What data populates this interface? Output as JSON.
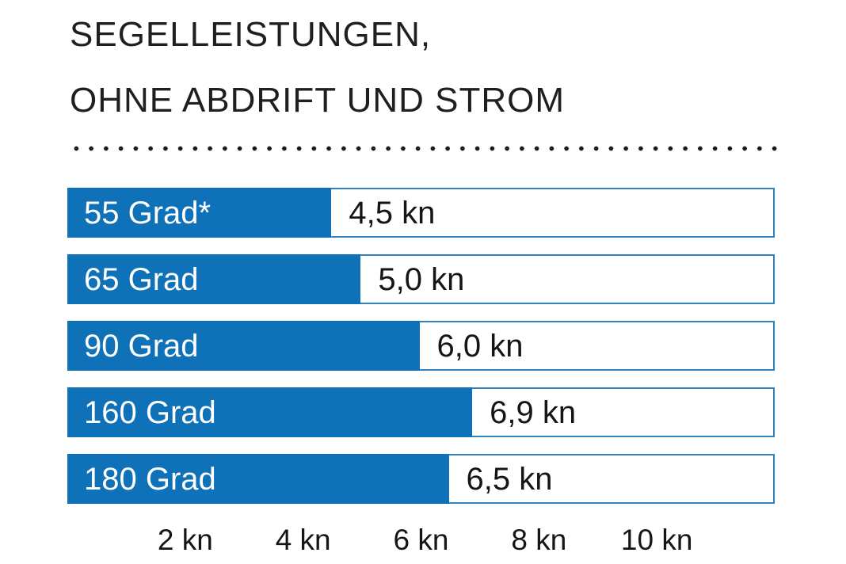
{
  "title": {
    "line1": "SEGELLEISTUNGEN,",
    "line2": "OHNE ABDRIFT UND STROM"
  },
  "chart_data": {
    "type": "bar",
    "orientation": "horizontal",
    "title": "SEGELLEISTUNGEN, OHNE ABDRIFT UND STROM",
    "categories": [
      "55 Grad*",
      "65 Grad",
      "90 Grad",
      "160 Grad",
      "180 Grad"
    ],
    "values": [
      4.5,
      5.0,
      6.0,
      6.9,
      6.5
    ],
    "value_labels": [
      "4,5 kn",
      "5,0 kn",
      "6,0 kn",
      "6,9 kn",
      "6,5 kn"
    ],
    "unit": "kn",
    "xlabel": "",
    "ylabel": "",
    "xlim": [
      0,
      12
    ],
    "x_ticks": [
      {
        "value": 2,
        "label": "2 kn"
      },
      {
        "value": 4,
        "label": "4 kn"
      },
      {
        "value": 6,
        "label": "6 kn"
      },
      {
        "value": 8,
        "label": "8 kn"
      },
      {
        "value": 10,
        "label": "10 kn"
      }
    ],
    "grid": false,
    "legend": false,
    "colors": {
      "bar_fill": "#0f72b9",
      "bar_border": "#3181bd",
      "label_text": "#ffffff",
      "value_text": "#151515",
      "title_text": "#1f1f1e",
      "dots": "#1c1c1c"
    }
  }
}
